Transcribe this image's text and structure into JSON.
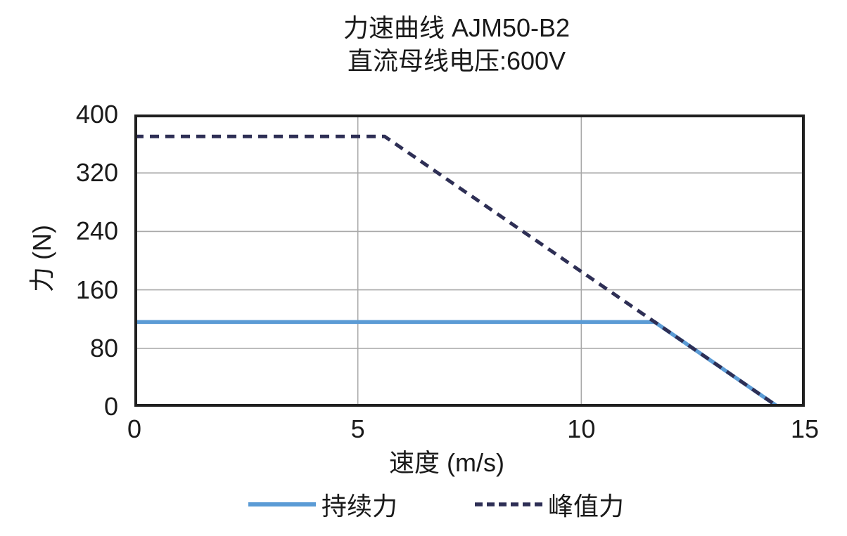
{
  "chart_data": {
    "type": "line",
    "title": "力速曲线 AJM50-B2",
    "subtitle": "直流母线电压:600V",
    "xlabel": "速度 (m/s)",
    "ylabel": "力 (N)",
    "xlim": [
      0,
      15
    ],
    "ylim": [
      0,
      400
    ],
    "xticks": [
      0,
      5,
      10,
      15
    ],
    "yticks": [
      0,
      80,
      160,
      240,
      320,
      400
    ],
    "x_gridlines": [
      5,
      10
    ],
    "y_gridlines": [
      80,
      160,
      240,
      320
    ],
    "grid": true,
    "legend_position": "bottom",
    "series": [
      {
        "name": "持续力",
        "style": "solid",
        "color": "#5b9bd5",
        "points": [
          [
            0,
            116
          ],
          [
            11.64,
            116
          ],
          [
            14.4,
            0
          ]
        ]
      },
      {
        "name": "峰值力",
        "style": "dashed",
        "color": "#2e2f55",
        "points": [
          [
            0,
            370
          ],
          [
            5.6,
            370
          ],
          [
            14.4,
            0
          ]
        ]
      }
    ],
    "colors": {
      "grid": "#a9a9a9",
      "plot_border": "#1f1f1f",
      "text": "#1a1a1a"
    }
  }
}
